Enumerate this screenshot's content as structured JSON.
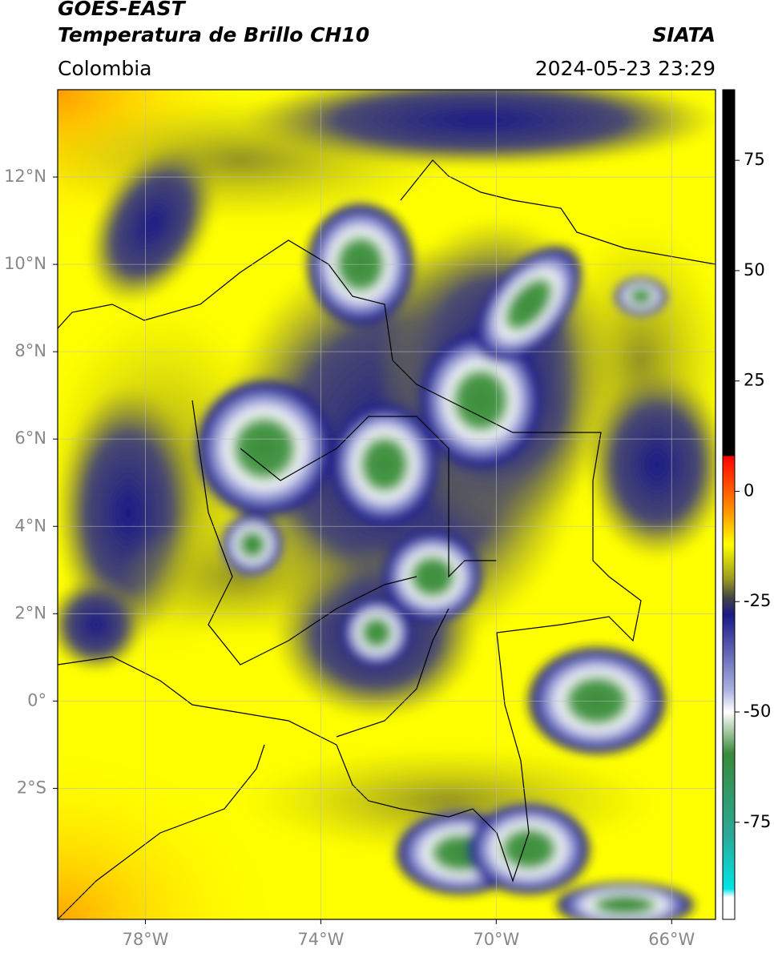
{
  "header": {
    "title": "GOES-EAST",
    "subtitle": "Temperatura de Brillo CH10",
    "source": "SIATA",
    "region": "Colombia",
    "timestamp": "2024-05-23 23:29"
  },
  "map": {
    "xlim": [
      -80,
      -65
    ],
    "ylim": [
      -5,
      14
    ],
    "xticks": [
      {
        "value": -78,
        "label": "78°W"
      },
      {
        "value": -74,
        "label": "74°W"
      },
      {
        "value": -70,
        "label": "70°W"
      },
      {
        "value": -66,
        "label": "66°W"
      }
    ],
    "yticks": [
      {
        "value": 12,
        "label": "12°N"
      },
      {
        "value": 10,
        "label": "10°N"
      },
      {
        "value": 8,
        "label": "8°N"
      },
      {
        "value": 6,
        "label": "6°N"
      },
      {
        "value": 4,
        "label": "4°N"
      },
      {
        "value": 2,
        "label": "2°N"
      },
      {
        "value": 0,
        "label": "0°"
      },
      {
        "value": -2,
        "label": "2°S"
      }
    ],
    "grid": true
  },
  "colorbar": {
    "lim": [
      -97,
      91
    ],
    "ticks": [
      75,
      50,
      25,
      0,
      -25,
      -50,
      -75
    ]
  }
}
